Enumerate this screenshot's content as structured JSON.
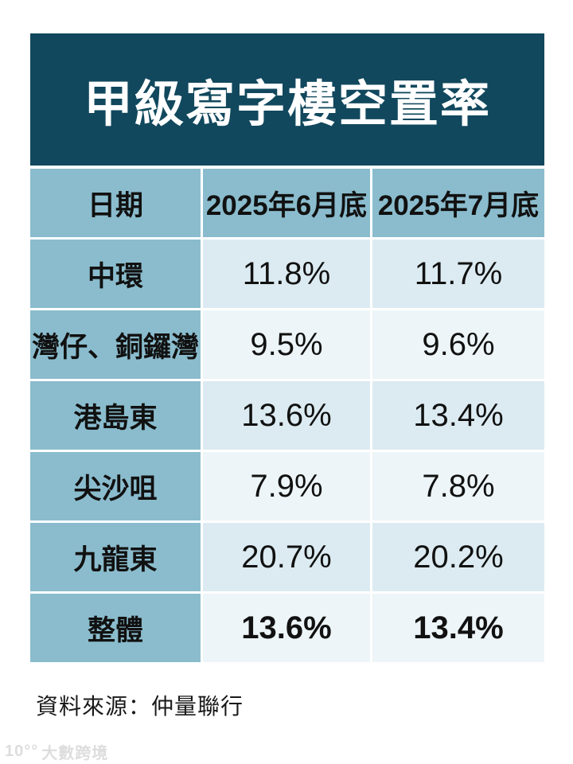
{
  "title": "甲級寫字樓空置率",
  "table": {
    "headers": [
      "日期",
      "2025年6月底",
      "2025年7月底"
    ],
    "rows": [
      {
        "label": "中環",
        "values": [
          "11.8%",
          "11.7%"
        ]
      },
      {
        "label": "灣仔、銅鑼灣",
        "values": [
          "9.5%",
          "9.6%"
        ]
      },
      {
        "label": "港島東",
        "values": [
          "13.6%",
          "13.4%"
        ]
      },
      {
        "label": "尖沙咀",
        "values": [
          "7.9%",
          "7.8%"
        ]
      },
      {
        "label": "九龍東",
        "values": [
          "20.7%",
          "20.2%"
        ]
      },
      {
        "label": "整體",
        "values": [
          "13.6%",
          "13.4%"
        ]
      }
    ]
  },
  "footer": {
    "source": "資料來源：仲量聯行"
  },
  "watermark": {
    "logo": "10°°",
    "text": "大數跨境"
  },
  "colors": {
    "title_background": "#11485d",
    "title_text": "#ffffff",
    "header_background": "#8abccd",
    "row_shade_dark": "#dcebf1",
    "row_shade_light": "#edf5f8",
    "body_text": "#111111"
  },
  "chart_data": {
    "type": "table",
    "title": "甲級寫字樓空置率",
    "columns": [
      "日期",
      "2025年6月底",
      "2025年7月底"
    ],
    "rows": [
      [
        "中環",
        "11.8%",
        "11.7%"
      ],
      [
        "灣仔、銅鑼灣",
        "9.5%",
        "9.6%"
      ],
      [
        "港島東",
        "13.6%",
        "13.4%"
      ],
      [
        "尖沙咀",
        "7.9%",
        "7.8%"
      ],
      [
        "九龍東",
        "20.7%",
        "20.2%"
      ],
      [
        "整體",
        "13.6%",
        "13.4%"
      ]
    ],
    "series": [
      {
        "name": "2025年6月底",
        "values": [
          11.8,
          9.5,
          13.6,
          7.9,
          20.7,
          13.6
        ]
      },
      {
        "name": "2025年7月底",
        "values": [
          11.7,
          9.6,
          13.4,
          7.8,
          20.2,
          13.4
        ]
      }
    ],
    "categories": [
      "中環",
      "灣仔、銅鑼灣",
      "港島東",
      "尖沙咀",
      "九龍東",
      "整體"
    ],
    "unit": "%",
    "source": "仲量聯行"
  }
}
